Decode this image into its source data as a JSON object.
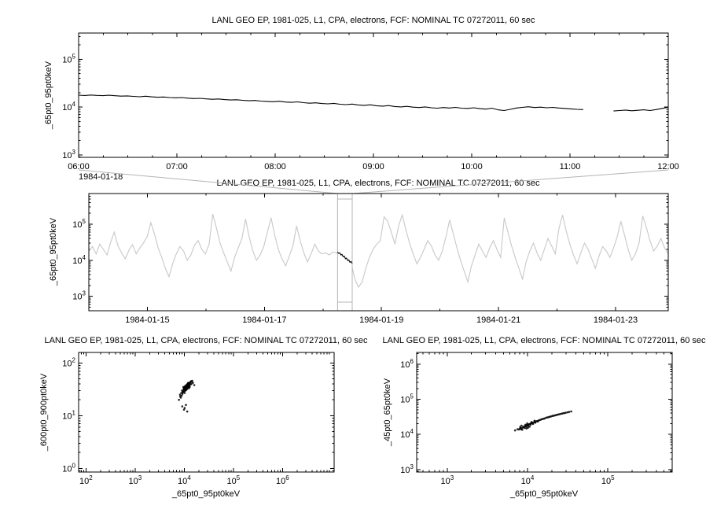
{
  "app": {
    "background": "#ffffff"
  },
  "chart_data": [
    {
      "type": "line",
      "panel": "top",
      "name": "detail-timeseries",
      "title": "LANL GEO EP, 1981-025, L1, CPA, electrons, FCF: NOMINAL TC 07272011, 60 sec",
      "ylabel": "_65pt0_95pt0keV",
      "xaxis": {
        "scale": "linear",
        "unit": "hours",
        "range": [
          6,
          12
        ],
        "tick_values": [
          6,
          7,
          8,
          9,
          10,
          11,
          12
        ],
        "tick_labels": [
          "06:00",
          "07:00",
          "08:00",
          "09:00",
          "10:00",
          "11:00",
          "12:00"
        ],
        "minor_step": 0.25,
        "context_label": "1984-01-18"
      },
      "yaxis": {
        "scale": "log",
        "range_log10": [
          2.95,
          5.55
        ],
        "tick_exponents": [
          3,
          4,
          5
        ]
      },
      "series": [
        {
          "name": "_65pt0_95pt0keV",
          "color": "#000000",
          "x_start": 6,
          "x_end": 12,
          "value_scale": 1000,
          "values": [
            17.8,
            17.5,
            17.9,
            17.6,
            17.4,
            17.7,
            17.3,
            17,
            17.2,
            16.8,
            16.5,
            16.9,
            16.4,
            16.1,
            16.3,
            15.9,
            15.7,
            15.9,
            15.4,
            15.1,
            15.3,
            14.9,
            14.6,
            14.8,
            14.4,
            14.1,
            14.3,
            13.9,
            13.6,
            13.8,
            13.4,
            13.2,
            13,
            13.3,
            12.8,
            12.6,
            12.9,
            12.4,
            12.1,
            12.3,
            11.9,
            11.7,
            12,
            11.5,
            11.3,
            11.6,
            11.1,
            10.9,
            11.2,
            10.7,
            10.5,
            10.8,
            10.3,
            10.1,
            10.4,
            10,
            9.8,
            10.1,
            9.7,
            9.5,
            9.8,
            9.6,
            9.9,
            9.5,
            9.4,
            9.7,
            9.3,
            9.1,
            9.5,
            8.8,
            8.5,
            9,
            9.6,
            9.9,
            10.2,
            9.8,
            10,
            9.7,
            9.9,
            9.6,
            9.4,
            9.2,
            9,
            8.9,
            null,
            null,
            null,
            null,
            8.3,
            8.5,
            8.7,
            8.4,
            8.6,
            8.8,
            8.5,
            8.9,
            9.4,
            10
          ]
        }
      ]
    },
    {
      "type": "line",
      "panel": "mid",
      "name": "context-timeseries",
      "title": "LANL GEO EP, 1981-025, L1, CPA, electrons, FCF: NOMINAL TC 07272011, 60 sec",
      "ylabel": "_65pt0_95pt0keV",
      "xaxis": {
        "scale": "linear",
        "unit": "day-of-january-1984",
        "range": [
          14,
          23.9
        ],
        "tick_values": [
          15,
          17,
          19,
          21,
          23
        ],
        "tick_labels": [
          "1984-01-15",
          "1984-01-17",
          "1984-01-19",
          "1984-01-21",
          "1984-01-23"
        ],
        "minor_step": 1
      },
      "yaxis": {
        "scale": "log",
        "range_log10": [
          2.6,
          5.85
        ],
        "tick_exponents": [
          3,
          4,
          5
        ]
      },
      "zoom_box": [
        18.25,
        18.5
      ],
      "zoom_box_color": "#b4b4b4",
      "series": [
        {
          "name": "context-overview",
          "color": "#c8c8c8",
          "x_start": 14,
          "x_end": 23.9,
          "value_scale": 1000,
          "values": [
            18,
            24,
            15,
            28,
            20,
            14,
            32,
            60,
            25,
            16,
            11,
            19,
            27,
            15,
            22,
            30,
            45,
            110,
            55,
            22,
            12,
            6,
            3.5,
            8,
            15,
            24,
            18,
            10,
            14,
            26,
            35,
            20,
            15,
            28,
            190,
            80,
            30,
            16,
            9,
            5,
            12,
            22,
            40,
            140,
            45,
            18,
            10,
            14,
            24,
            60,
            150,
            50,
            20,
            11,
            7,
            13,
            25,
            90,
            35,
            16,
            9,
            15,
            28,
            18,
            15,
            16,
            14,
            17,
            16,
            13,
            11,
            9.5,
            8.5,
            3,
            1.8,
            2.5,
            6,
            12,
            20,
            28,
            35,
            160,
            120,
            60,
            28,
            90,
            180,
            70,
            30,
            15,
            8,
            12,
            20,
            35,
            25,
            14,
            10,
            18,
            45,
            130,
            55,
            22,
            10,
            5,
            2.5,
            7,
            14,
            28,
            18,
            12,
            22,
            35,
            20,
            12,
            150,
            60,
            25,
            12,
            6,
            3,
            9,
            18,
            30,
            16,
            10,
            20,
            40,
            25,
            15,
            75,
            180,
            65,
            28,
            14,
            8,
            16,
            30,
            20,
            11,
            6,
            13,
            24,
            18,
            12,
            22,
            45,
            120,
            50,
            20,
            10,
            15,
            30,
            170,
            80,
            35,
            18,
            25,
            40,
            22,
            15
          ]
        },
        {
          "name": "zoom-interval-highlight",
          "color": "#000000",
          "x_start": 18.25,
          "x_end": 18.5,
          "value_scale": 1000,
          "values": [
            17,
            15.5,
            16,
            14,
            14.5,
            12.5,
            13,
            11,
            11.5,
            9.8,
            10.2,
            8.8,
            9.2,
            8.2
          ]
        }
      ]
    },
    {
      "type": "scatter",
      "panel": "bl",
      "name": "scatter-600-900-vs-65-95",
      "title": "LANL GEO EP, 1981-025, L1, CPA, electrons, FCF: NOMINAL TC 07272011, 60 sec",
      "xlabel": "_65pt0_95pt0keV",
      "ylabel": "_600pt0_900pt0keV",
      "color": "#000000",
      "xaxis": {
        "scale": "log",
        "range_log10": [
          1.85,
          7.05
        ],
        "tick_exponents": [
          2,
          3,
          4,
          5,
          6
        ]
      },
      "yaxis": {
        "scale": "log",
        "range_log10": [
          -0.07,
          2.2
        ],
        "tick_exponents": [
          0,
          1,
          2
        ]
      },
      "points": [
        [
          8200,
          25
        ],
        [
          9000,
          30
        ],
        [
          9500,
          28
        ],
        [
          10000,
          33
        ],
        [
          10400,
          35
        ],
        [
          11000,
          31
        ],
        [
          11500,
          38
        ],
        [
          12000,
          36
        ],
        [
          12500,
          40
        ],
        [
          13000,
          42
        ],
        [
          9700,
          32
        ],
        [
          10100,
          29
        ],
        [
          10800,
          34
        ],
        [
          11200,
          37
        ],
        [
          11800,
          35
        ],
        [
          12300,
          39
        ],
        [
          9200,
          26
        ],
        [
          8700,
          27
        ],
        [
          10600,
          30
        ],
        [
          11400,
          33
        ],
        [
          12800,
          41
        ],
        [
          13500,
          44
        ],
        [
          14000,
          40
        ],
        [
          9900,
          31
        ],
        [
          10300,
          36
        ],
        [
          11700,
          39
        ],
        [
          12100,
          34
        ],
        [
          8900,
          24
        ],
        [
          9400,
          29
        ],
        [
          10900,
          38
        ],
        [
          11300,
          32
        ],
        [
          12600,
          37
        ],
        [
          13200,
          43
        ],
        [
          10200,
          27
        ],
        [
          10700,
          33
        ],
        [
          11900,
          41
        ],
        [
          9600,
          35
        ],
        [
          8500,
          22
        ],
        [
          14500,
          46
        ],
        [
          15000,
          42
        ],
        [
          10500,
          31
        ],
        [
          11100,
          36
        ],
        [
          12200,
          38
        ],
        [
          12900,
          35
        ],
        [
          13800,
          45
        ],
        [
          9300,
          28
        ],
        [
          9800,
          34
        ],
        [
          10050,
          30
        ],
        [
          11600,
          40
        ],
        [
          12400,
          33
        ],
        [
          16000,
          38
        ],
        [
          7800,
          20
        ],
        [
          8300,
          23
        ],
        [
          13400,
          39
        ],
        [
          14200,
          44
        ],
        [
          10150,
          32
        ],
        [
          10950,
          37
        ],
        [
          11450,
          35
        ],
        [
          12050,
          42
        ],
        [
          12750,
          36
        ],
        [
          9100,
          15
        ],
        [
          9900,
          13
        ],
        [
          10800,
          16
        ],
        [
          11500,
          12
        ],
        [
          10200,
          14
        ]
      ]
    },
    {
      "type": "scatter",
      "panel": "br",
      "name": "scatter-45-65-vs-65-95",
      "title": "LANL GEO EP, 1981-025, L1, CPA, electrons, FCF: NOMINAL TC 07272011, 60 sec",
      "xlabel": "_65pt0_95pt0keV",
      "ylabel": "_45pt0_65pt0keV",
      "color": "#000000",
      "xaxis": {
        "scale": "log",
        "range_log10": [
          2.62,
          5.8
        ],
        "tick_exponents": [
          3,
          4,
          5
        ]
      },
      "yaxis": {
        "scale": "log",
        "range_log10": [
          2.93,
          6.33
        ],
        "tick_exponents": [
          3,
          4,
          5,
          6
        ]
      },
      "points": [
        [
          7000,
          13000
        ],
        [
          7500,
          14000
        ],
        [
          8000,
          14500
        ],
        [
          8200,
          15500
        ],
        [
          8500,
          15000
        ],
        [
          8800,
          16500
        ],
        [
          9000,
          16000
        ],
        [
          9300,
          17500
        ],
        [
          9500,
          17000
        ],
        [
          9800,
          18500
        ],
        [
          10000,
          18000
        ],
        [
          10300,
          19000
        ],
        [
          10500,
          19500
        ],
        [
          10800,
          20000
        ],
        [
          11000,
          20500
        ],
        [
          11300,
          21000
        ],
        [
          11600,
          21500
        ],
        [
          12000,
          22000
        ],
        [
          12400,
          23000
        ],
        [
          12800,
          23500
        ],
        [
          13200,
          24000
        ],
        [
          13600,
          24500
        ],
        [
          14000,
          25500
        ],
        [
          14500,
          26000
        ],
        [
          15000,
          27000
        ],
        [
          15500,
          27500
        ],
        [
          16000,
          28000
        ],
        [
          16600,
          29000
        ],
        [
          17200,
          30000
        ],
        [
          17800,
          30500
        ],
        [
          18400,
          31000
        ],
        [
          19000,
          32000
        ],
        [
          19700,
          32500
        ],
        [
          20400,
          33500
        ],
        [
          21000,
          34000
        ],
        [
          21800,
          34500
        ],
        [
          22600,
          35500
        ],
        [
          23400,
          36000
        ],
        [
          24200,
          37000
        ],
        [
          25000,
          37500
        ],
        [
          26000,
          38500
        ],
        [
          27000,
          39000
        ],
        [
          28000,
          40000
        ],
        [
          29000,
          40500
        ],
        [
          30000,
          41500
        ],
        [
          31500,
          42500
        ],
        [
          33000,
          43500
        ],
        [
          35000,
          45000
        ],
        [
          8300,
          14000
        ],
        [
          8900,
          15800
        ],
        [
          9600,
          16800
        ],
        [
          10200,
          17600
        ],
        [
          10900,
          18800
        ],
        [
          11700,
          19800
        ],
        [
          12500,
          21500
        ],
        [
          13400,
          23200
        ],
        [
          8600,
          13500
        ],
        [
          9200,
          15200
        ],
        [
          7800,
          13800
        ],
        [
          8100,
          16200
        ],
        [
          9400,
          18800
        ],
        [
          10600,
          16500
        ],
        [
          11200,
          22500
        ],
        [
          9900,
          20500
        ],
        [
          10100,
          15500
        ],
        [
          12200,
          24500
        ],
        [
          8400,
          17800
        ],
        [
          9700,
          14800
        ]
      ]
    }
  ]
}
